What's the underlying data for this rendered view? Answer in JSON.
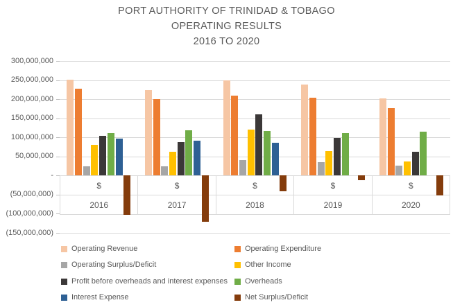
{
  "title": {
    "line1": "PORT AUTHORITY OF TRINIDAD & TOBAGO",
    "line2": "OPERATING RESULTS",
    "line3": "2016 TO 2020"
  },
  "chart_data": {
    "type": "bar",
    "title": "PORT AUTHORITY OF TRINIDAD & TOBAGO OPERATING RESULTS 2016 TO 2020",
    "categories": [
      "2016",
      "2017",
      "2018",
      "2019",
      "2020"
    ],
    "category_unit_label": "$",
    "ylim": [
      -150000000,
      300000000
    ],
    "grid": true,
    "legend_position": "bottom",
    "y_ticks": [
      {
        "value": 300000000,
        "label": "300,000,000"
      },
      {
        "value": 250000000,
        "label": "250,000,000"
      },
      {
        "value": 200000000,
        "label": "200,000,000"
      },
      {
        "value": 150000000,
        "label": "150,000,000"
      },
      {
        "value": 100000000,
        "label": "100,000,000"
      },
      {
        "value": 50000000,
        "label": "50,000,000"
      },
      {
        "value": 0,
        "label": "-"
      },
      {
        "value": -50000000,
        "label": "(50,000,000)"
      },
      {
        "value": -100000000,
        "label": "(100,000,000)"
      },
      {
        "value": -150000000,
        "label": "(150,000,000)"
      }
    ],
    "series": [
      {
        "name": "Operating Revenue",
        "color": "#F6C6A4",
        "values": [
          252000000,
          224000000,
          250000000,
          239000000,
          203000000
        ]
      },
      {
        "name": "Operating Expenditure",
        "color": "#ED7D31",
        "values": [
          228000000,
          200000000,
          209000000,
          204000000,
          177000000
        ]
      },
      {
        "name": "Operating Surplus/Deficit",
        "color": "#A6A6A6",
        "values": [
          24000000,
          24000000,
          41000000,
          35000000,
          26000000
        ]
      },
      {
        "name": "Other Income",
        "color": "#FFC000",
        "values": [
          81000000,
          63000000,
          120000000,
          64000000,
          37000000
        ]
      },
      {
        "name": "Profit before overheads and interest expenses",
        "color": "#3B3838",
        "values": [
          105000000,
          87000000,
          161000000,
          99000000,
          63000000
        ]
      },
      {
        "name": "Overheads",
        "color": "#70AD47",
        "values": [
          112000000,
          118000000,
          116000000,
          112000000,
          115000000
        ]
      },
      {
        "name": "Interest Expense",
        "color": "#2E6094",
        "values": [
          96000000,
          91000000,
          86000000,
          0,
          0
        ]
      },
      {
        "name": "Net Surplus/Deficit",
        "color": "#843C0C",
        "values": [
          -103000000,
          -122000000,
          -41000000,
          -13000000,
          -52000000
        ]
      }
    ]
  },
  "colors": {
    "grid": "#D9D9D9",
    "tick": "#BFBFBF",
    "title_text": "#595959",
    "axis_text": "#595959",
    "legend_text": "#595959",
    "table_border": "#D9D9D9",
    "background": "#FFFFFF"
  }
}
